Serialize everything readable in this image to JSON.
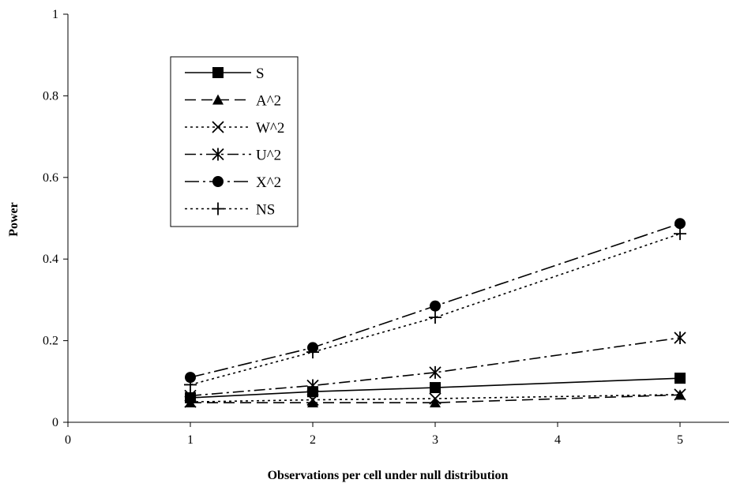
{
  "chart_data": {
    "type": "line",
    "title": "",
    "xlabel": "Observations per cell under null distribution",
    "ylabel": "Power",
    "xlim": [
      0,
      5.4
    ],
    "ylim": [
      0,
      1
    ],
    "xticks": [
      0,
      1,
      2,
      3,
      4,
      5
    ],
    "yticks": [
      0,
      0.2,
      0.4,
      0.6,
      0.8,
      1
    ],
    "xtick_labels": [
      "0",
      "1",
      "2",
      "3",
      "4",
      "5"
    ],
    "ytick_labels": [
      "0",
      "0.2",
      "0.4",
      "0.6",
      "0.8",
      "1"
    ],
    "grid": false,
    "legend_position": "top-left",
    "x": [
      1,
      2,
      3,
      5
    ],
    "series": [
      {
        "name": "S",
        "values": [
          0.06,
          0.075,
          0.085,
          0.108
        ],
        "marker": "square",
        "dash": "solid"
      },
      {
        "name": "A^2",
        "values": [
          0.048,
          0.048,
          0.048,
          0.067
        ],
        "marker": "triangle",
        "dash": "long-dash"
      },
      {
        "name": "W^2",
        "values": [
          0.05,
          0.055,
          0.058,
          0.068
        ],
        "marker": "x",
        "dash": "dot"
      },
      {
        "name": "U^2",
        "values": [
          0.065,
          0.09,
          0.122,
          0.207
        ],
        "marker": "star",
        "dash": "dash-dot"
      },
      {
        "name": "X^2",
        "values": [
          0.11,
          0.183,
          0.285,
          0.487
        ],
        "marker": "circle",
        "dash": "long-dash-dot"
      },
      {
        "name": "NS",
        "values": [
          0.092,
          0.172,
          0.257,
          0.462
        ],
        "marker": "plus",
        "dash": "dot"
      }
    ]
  }
}
